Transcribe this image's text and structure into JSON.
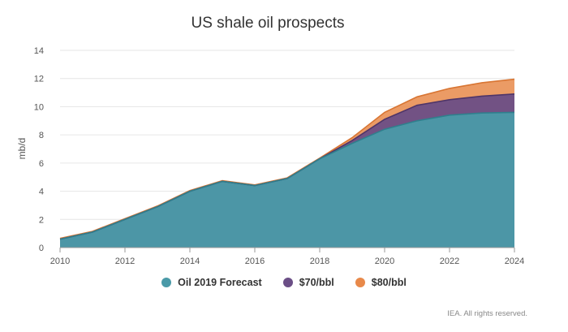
{
  "chart_data": {
    "type": "area",
    "title": "US shale oil prospects",
    "xlabel": "",
    "ylabel": "mb/d",
    "xlim": [
      2010,
      2024
    ],
    "ylim": [
      0,
      14
    ],
    "x_ticks": [
      "2010",
      "2012",
      "2014",
      "2016",
      "2018",
      "2020",
      "2022",
      "2024"
    ],
    "y_ticks": [
      "0",
      "2",
      "4",
      "6",
      "8",
      "10",
      "12",
      "14"
    ],
    "x": [
      2010,
      2011,
      2012,
      2013,
      2014,
      2015,
      2016,
      2017,
      2018,
      2019,
      2020,
      2021,
      2022,
      2023,
      2024
    ],
    "series": [
      {
        "name": "Oil 2019 Forecast",
        "color": "#4a9aa8",
        "values": [
          0.6,
          1.1,
          2.0,
          2.9,
          4.0,
          4.7,
          4.4,
          4.9,
          6.3,
          7.4,
          8.4,
          9.0,
          9.4,
          9.55,
          9.6
        ]
      },
      {
        "name": "$70/bbl",
        "color": "#6b4e86",
        "values": [
          0.6,
          1.1,
          2.0,
          2.9,
          4.0,
          4.7,
          4.4,
          4.9,
          6.3,
          7.6,
          9.1,
          10.1,
          10.5,
          10.75,
          10.9
        ]
      },
      {
        "name": "$80/bbl",
        "color": "#e8894a",
        "values": [
          0.65,
          1.15,
          2.05,
          2.95,
          4.05,
          4.75,
          4.45,
          4.95,
          6.35,
          7.8,
          9.6,
          10.7,
          11.3,
          11.7,
          11.95
        ]
      }
    ],
    "grid": true,
    "legend_position": "bottom"
  },
  "credit": "IEA. All rights reserved."
}
